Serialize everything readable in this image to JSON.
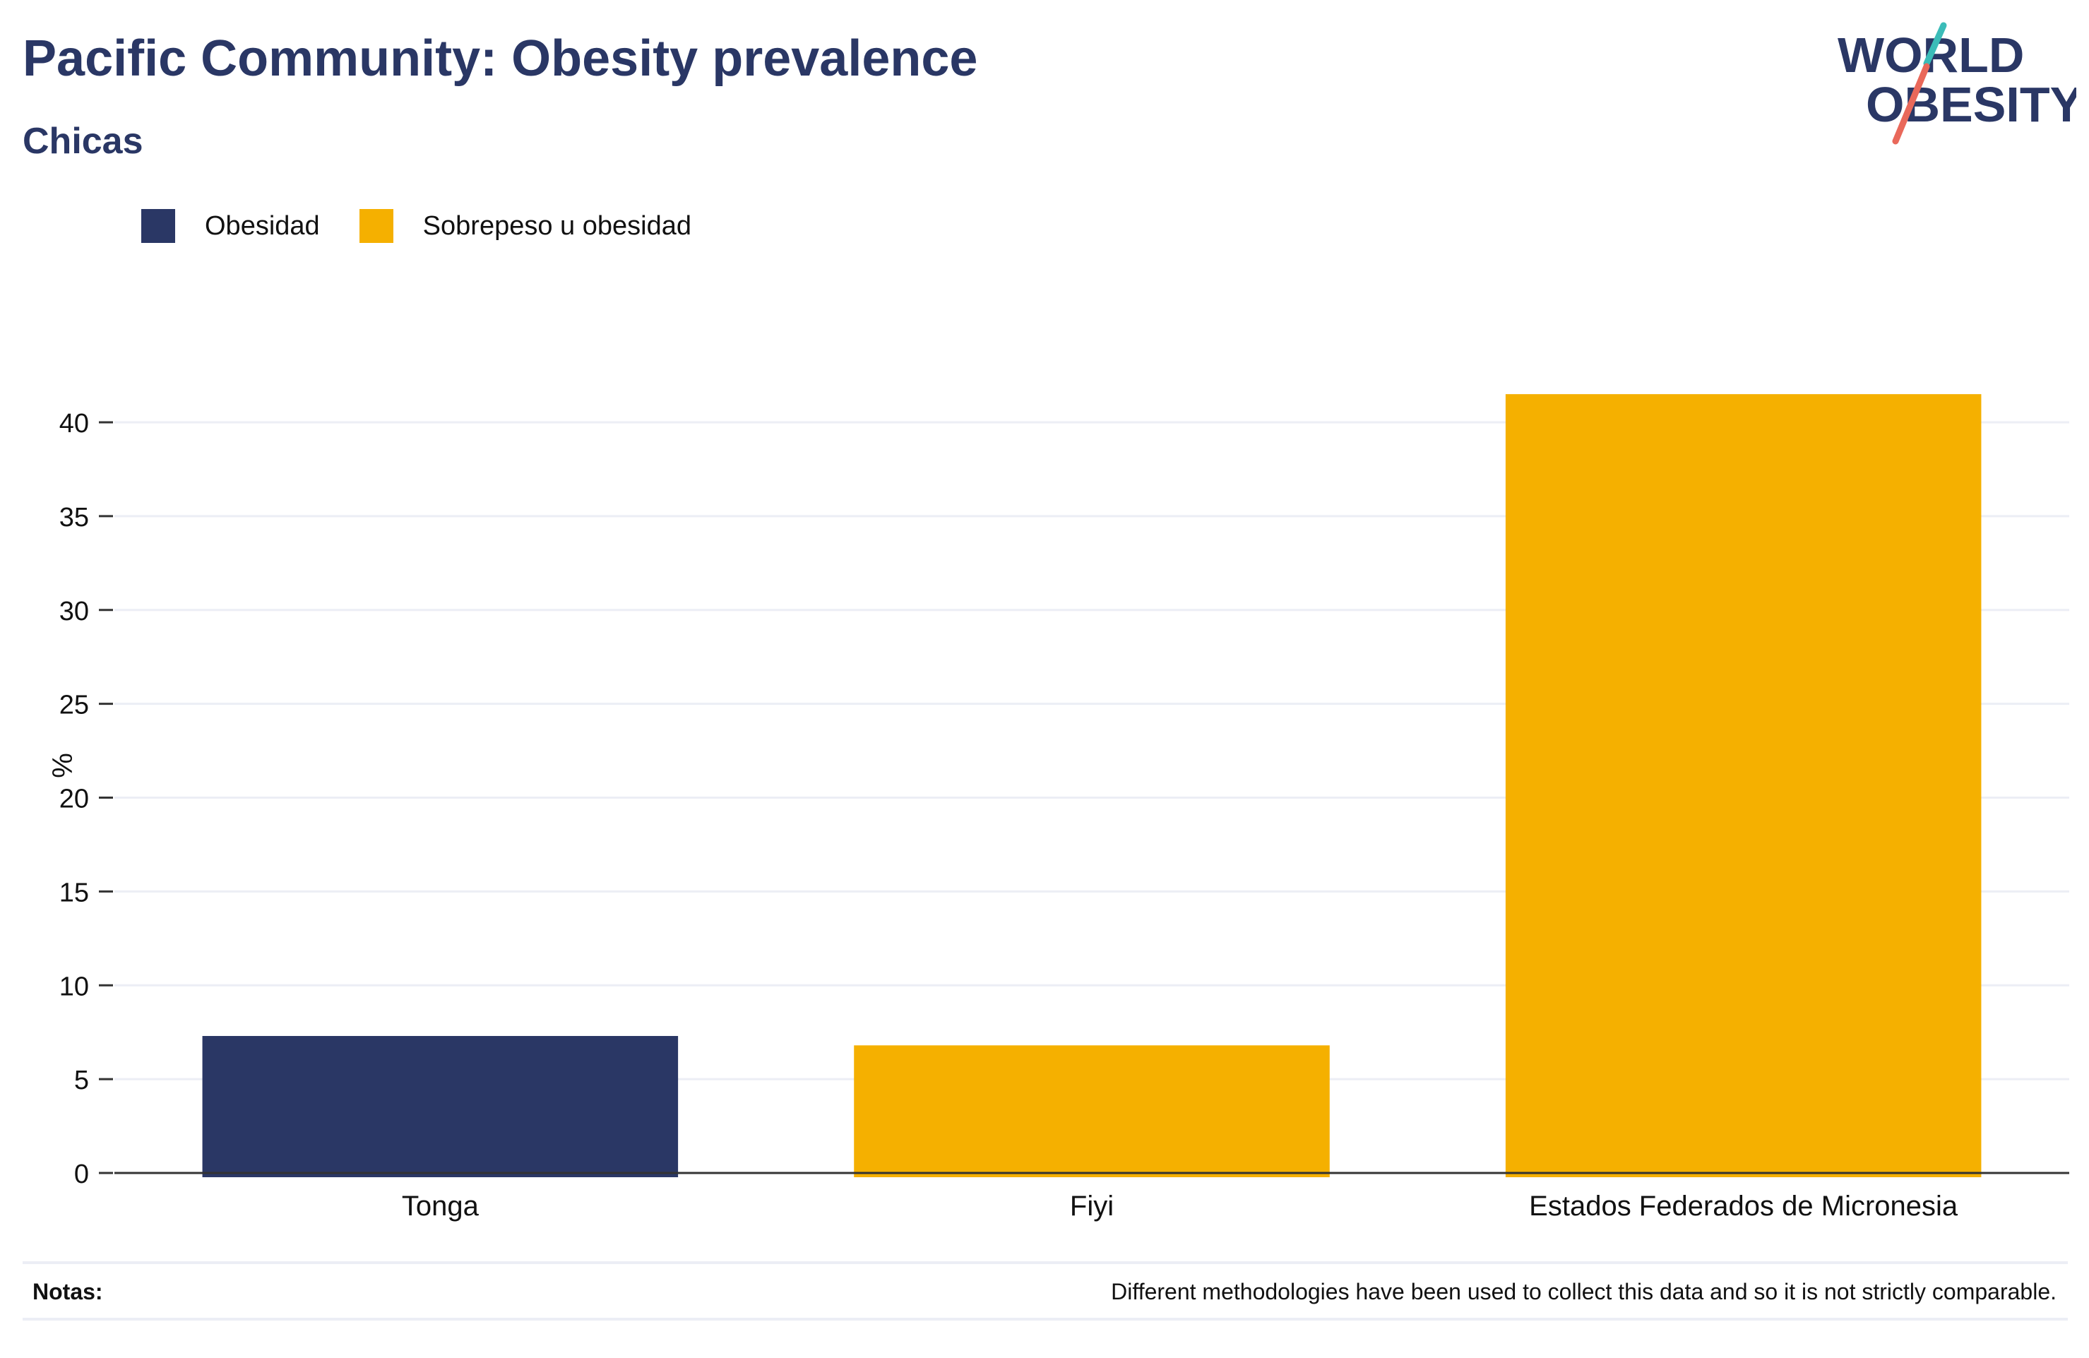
{
  "header": {
    "title": "Pacific Community: Obesity prevalence",
    "subtitle": "Chicas"
  },
  "logo": {
    "line1": "WORLD",
    "line2": "OBESITY",
    "colors": {
      "text": "#2a3765",
      "slash_top": "#3bbcb8",
      "slash_bottom": "#e9685a"
    }
  },
  "legend": {
    "items": [
      {
        "label": "Obesidad",
        "color": "#2a3765"
      },
      {
        "label": "Sobrepeso u obesidad",
        "color": "#f5b000"
      }
    ]
  },
  "chart_data": {
    "type": "bar",
    "title": "Pacific Community: Obesity prevalence",
    "subtitle": "Chicas",
    "xlabel": "",
    "ylabel": "%",
    "ylim": [
      0,
      42
    ],
    "yticks": [
      0,
      5,
      10,
      15,
      20,
      25,
      30,
      35,
      40
    ],
    "grid": true,
    "legend_position": "top-left",
    "categories": [
      "Tonga",
      "Fiyi",
      "Estados Federados de Micronesia"
    ],
    "bars": [
      {
        "category": "Tonga",
        "value": 7.3,
        "series": "Obesidad",
        "color": "#2a3765"
      },
      {
        "category": "Fiyi",
        "value": 6.8,
        "series": "Sobrepeso u obesidad",
        "color": "#f5b000"
      },
      {
        "category": "Estados Federados de Micronesia",
        "value": 41.5,
        "series": "Sobrepeso u obesidad",
        "color": "#f5b000"
      }
    ]
  },
  "notes": {
    "label": "Notas:",
    "text": "Different methodologies have been used to collect this data and so it is not strictly comparable."
  }
}
